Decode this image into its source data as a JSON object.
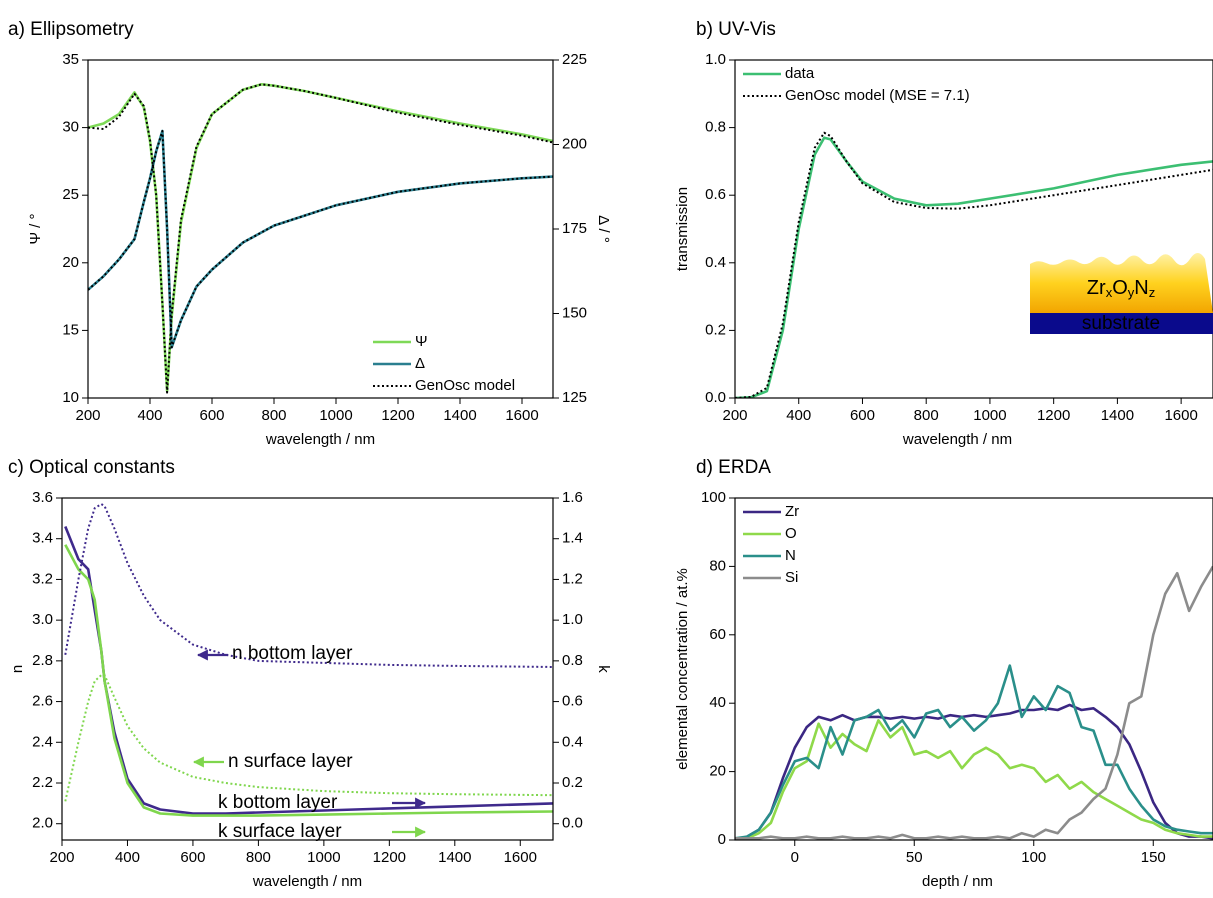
{
  "chart_data": [
    {
      "type": "line",
      "title": "a) Ellipsometry",
      "xlabel": "wavelength / nm",
      "ylabel": "Ψ / °",
      "y2label": "Δ / °",
      "x": [
        200,
        250,
        300,
        350,
        380,
        400,
        420,
        440,
        455,
        470,
        500,
        550,
        600,
        700,
        760,
        800,
        900,
        1000,
        1200,
        1400,
        1600,
        1700
      ],
      "series": [
        {
          "name": "Ψ",
          "color": "#7ed957",
          "values": [
            30,
            30.3,
            31,
            32.6,
            31.5,
            29,
            25,
            17,
            10.5,
            16,
            23,
            28.5,
            31,
            32.8,
            33.2,
            33.1,
            32.7,
            32.2,
            31.2,
            30.3,
            29.5,
            29.0
          ]
        },
        {
          "name": "Δ",
          "color": "#2a7f8f",
          "axis": "y2",
          "values": [
            157,
            161,
            166,
            172,
            183,
            190,
            198,
            204,
            175,
            140,
            148,
            158,
            163,
            171,
            174,
            176,
            179,
            182,
            186,
            188.5,
            190,
            190.5
          ]
        },
        {
          "name": "GenOsc model",
          "color": "#000000",
          "dash": "dotted",
          "values": [
            30,
            29.9,
            30.8,
            32.5,
            31.6,
            29.1,
            25,
            17,
            10.4,
            16.2,
            23.2,
            28.6,
            31,
            32.8,
            33.2,
            33.1,
            32.7,
            32.2,
            31.1,
            30.2,
            29.4,
            28.9
          ]
        },
        {
          "color": "#000000",
          "dash": "dotted",
          "axis": "y2",
          "values": [
            157,
            161,
            166,
            172,
            183,
            190,
            198,
            204,
            175,
            140,
            148,
            158,
            163,
            171,
            174,
            176,
            179,
            182,
            186,
            188.5,
            190,
            190.5
          ]
        }
      ],
      "xlim": [
        200,
        1700
      ],
      "xticks": [
        200,
        400,
        600,
        800,
        1000,
        1200,
        1400,
        1600
      ],
      "ylim": [
        10,
        35
      ],
      "yticks": [
        10,
        15,
        20,
        25,
        30,
        35
      ],
      "y2lim": [
        125,
        225
      ],
      "y2ticks": [
        125,
        150,
        175,
        200,
        225
      ],
      "legend": "lower right"
    },
    {
      "type": "line",
      "title": "b) UV-Vis",
      "xlabel": "wavelength / nm",
      "ylabel": "transmission",
      "x": [
        200,
        250,
        300,
        350,
        400,
        450,
        480,
        500,
        550,
        600,
        700,
        800,
        900,
        1000,
        1200,
        1400,
        1600,
        1700
      ],
      "series": [
        {
          "name": "data",
          "color": "#3cbf72",
          "values": [
            0,
            0.002,
            0.02,
            0.2,
            0.5,
            0.72,
            0.77,
            0.765,
            0.7,
            0.64,
            0.59,
            0.57,
            0.575,
            0.59,
            0.62,
            0.66,
            0.69,
            0.7
          ]
        },
        {
          "name": "GenOsc model (MSE = 7.1)",
          "color": "#000000",
          "dash": "dotted",
          "values": [
            0,
            0.003,
            0.03,
            0.22,
            0.52,
            0.74,
            0.785,
            0.775,
            0.7,
            0.635,
            0.58,
            0.562,
            0.56,
            0.57,
            0.6,
            0.63,
            0.66,
            0.675
          ]
        }
      ],
      "xlim": [
        200,
        1700
      ],
      "xticks": [
        200,
        400,
        600,
        800,
        1000,
        1200,
        1400,
        1600
      ],
      "ylim": [
        0,
        1
      ],
      "yticks": [
        {
          "value": 0,
          "label": "0.0"
        },
        0.2,
        0.4,
        0.6,
        0.8,
        {
          "value": 1,
          "label": "1.0"
        }
      ],
      "legend": "upper left",
      "inset": {
        "layer": [
          "Zr",
          "x",
          "O",
          "y",
          "N",
          "z"
        ],
        "substrate": "substrate"
      }
    },
    {
      "type": "line",
      "title": "c) Optical constants",
      "xlabel": "wavelength / nm",
      "ylabel": "n",
      "y2label": "k",
      "x": [
        210,
        250,
        280,
        300,
        320,
        330,
        360,
        400,
        450,
        500,
        600,
        700,
        800,
        1000,
        1200,
        1400,
        1700
      ],
      "series": [
        {
          "color": "#3f2a8c",
          "axis": "y2",
          "values": [
            1.46,
            1.3,
            1.25,
            1.05,
            0.85,
            0.7,
            0.45,
            0.22,
            0.1,
            0.07,
            0.05,
            0.05,
            0.055,
            0.065,
            0.075,
            0.085,
            0.1
          ]
        },
        {
          "color": "#7fd64d",
          "axis": "y2",
          "values": [
            1.37,
            1.25,
            1.2,
            1.1,
            0.85,
            0.7,
            0.42,
            0.2,
            0.08,
            0.05,
            0.04,
            0.04,
            0.04,
            0.045,
            0.05,
            0.055,
            0.06
          ]
        },
        {
          "color": "#3f2a8c",
          "dash": "dotted",
          "values": [
            2.83,
            3.2,
            3.45,
            3.55,
            3.57,
            3.56,
            3.45,
            3.28,
            3.12,
            3.0,
            2.88,
            2.83,
            2.8,
            2.79,
            2.78,
            2.775,
            2.77
          ]
        },
        {
          "color": "#7fd64d",
          "dash": "dotted",
          "values": [
            2.11,
            2.4,
            2.6,
            2.7,
            2.73,
            2.73,
            2.62,
            2.48,
            2.37,
            2.3,
            2.23,
            2.2,
            2.18,
            2.16,
            2.15,
            2.145,
            2.14
          ]
        }
      ],
      "xlim": [
        200,
        1700
      ],
      "xticks": [
        200,
        400,
        600,
        800,
        1000,
        1200,
        1400,
        1600
      ],
      "ylim": [
        1.92,
        3.6
      ],
      "yticks": [
        {
          "value": 2,
          "label": "2.0"
        },
        2.2,
        2.4,
        2.6,
        2.8,
        {
          "value": 3,
          "label": "3.0"
        },
        3.2,
        3.4,
        3.6
      ],
      "y2lim": [
        -0.08,
        1.6
      ],
      "y2ticks": [
        {
          "value": 0,
          "label": "0.0"
        },
        0.2,
        0.4,
        0.6,
        0.8,
        {
          "value": 1,
          "label": "1.0"
        },
        1.2,
        1.4,
        1.6
      ],
      "annotations": [
        {
          "text": "n bottom layer",
          "color": "#3f2a8c"
        },
        {
          "text": "n surface layer",
          "color": "#7fd64d"
        },
        {
          "text": "k bottom layer",
          "color": "#3f2a8c"
        },
        {
          "text": "k surface layer",
          "color": "#7fd64d"
        }
      ]
    },
    {
      "type": "line",
      "title": "d) ERDA",
      "xlabel": "depth / nm",
      "ylabel": "elemental concentration / at.%",
      "x": [
        -25,
        -20,
        -15,
        -10,
        -5,
        0,
        5,
        10,
        15,
        20,
        25,
        30,
        35,
        40,
        45,
        50,
        55,
        60,
        65,
        70,
        75,
        80,
        85,
        90,
        95,
        100,
        105,
        110,
        115,
        120,
        125,
        130,
        135,
        140,
        145,
        150,
        155,
        160,
        165,
        170,
        175
      ],
      "series": [
        {
          "name": "Zr",
          "color": "#3b2783",
          "values": [
            0,
            1,
            3,
            8,
            18,
            27,
            33,
            36,
            35,
            36.5,
            35,
            36,
            36,
            35.5,
            36,
            35.5,
            36,
            35.5,
            36.5,
            36,
            36.5,
            36,
            36.5,
            37,
            38,
            38,
            38.5,
            38,
            39.5,
            38,
            38.5,
            36,
            33,
            28,
            20,
            11,
            5,
            2,
            1,
            1,
            0.5
          ]
        },
        {
          "name": "O",
          "color": "#8fd94a",
          "values": [
            0,
            0.5,
            2,
            5,
            14,
            21,
            23,
            34,
            27,
            31,
            28,
            26,
            35,
            30,
            33,
            25,
            26,
            24,
            26,
            21,
            25,
            27,
            25,
            21,
            22,
            21,
            17,
            19,
            15,
            17,
            14,
            12,
            10,
            8,
            6,
            5,
            3,
            2,
            1.5,
            1,
            1
          ]
        },
        {
          "name": "N",
          "color": "#2a8f8a",
          "values": [
            0.5,
            1,
            3,
            8,
            16,
            23,
            24,
            21,
            33,
            25,
            35,
            36,
            38,
            32,
            35,
            30,
            37,
            38,
            33,
            36,
            32,
            35,
            40,
            51,
            36,
            42,
            38,
            45,
            43,
            33,
            32,
            22,
            22,
            15,
            10,
            6,
            4,
            3,
            2.5,
            2,
            2
          ]
        },
        {
          "name": "Si",
          "color": "#8c8c8c",
          "values": [
            0.5,
            0.5,
            0.5,
            1,
            0.5,
            0.5,
            1,
            0.5,
            0.5,
            1,
            0.5,
            0.5,
            1,
            0.5,
            1.5,
            0.5,
            0.5,
            1,
            0.5,
            1,
            0.5,
            0.5,
            1,
            0.5,
            2,
            1,
            3,
            2,
            6,
            8,
            12,
            15,
            25,
            40,
            42,
            60,
            72,
            78,
            67,
            74,
            80
          ]
        }
      ],
      "xlim": [
        -25,
        175
      ],
      "xticks": [
        0,
        50,
        100,
        150
      ],
      "ylim": [
        0,
        100
      ],
      "yticks": [
        0,
        20,
        40,
        60,
        80,
        100
      ],
      "legend": "upper left"
    }
  ]
}
